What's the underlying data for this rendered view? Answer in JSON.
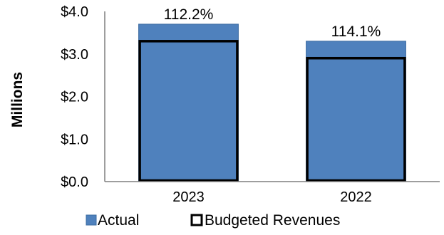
{
  "chart_data": {
    "type": "bar",
    "categories": [
      "2023",
      "2022"
    ],
    "series": [
      {
        "name": "Actual",
        "values": [
          3.7,
          3.3
        ]
      },
      {
        "name": "Budgeted Revenues",
        "values": [
          3.3,
          2.9
        ]
      }
    ],
    "data_labels": [
      "112.2%",
      "114.1%"
    ],
    "ylabel": "Millions",
    "ylim": [
      0,
      4
    ],
    "yticks": [
      "$0.0",
      "$1.0",
      "$2.0",
      "$3.0",
      "$4.0"
    ],
    "grid": false,
    "legend": "bottom",
    "colors": {
      "actual": "#4f81bd",
      "budget_outline": "#000000",
      "axis": "#7f7f7f"
    }
  }
}
